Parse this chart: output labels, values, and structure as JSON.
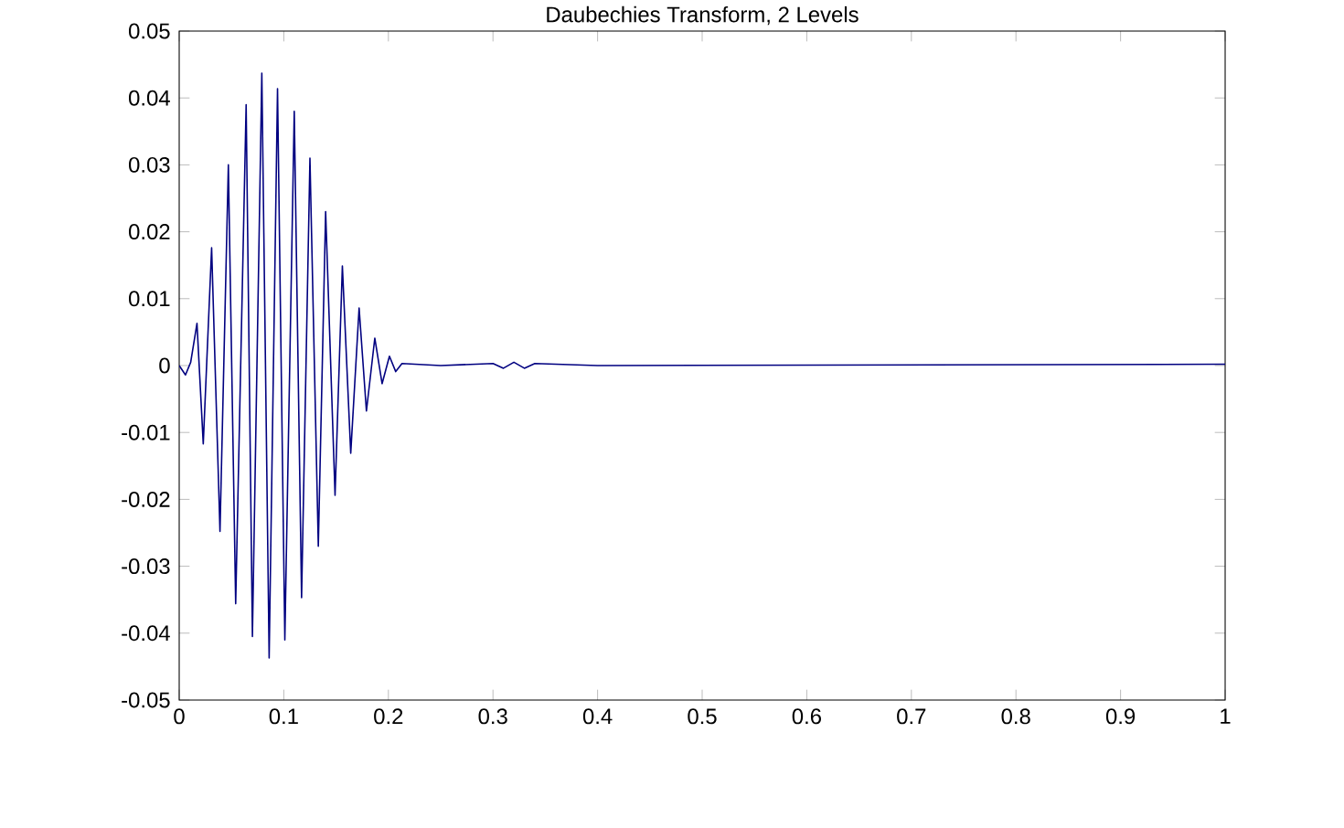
{
  "chart_data": {
    "type": "line",
    "title": "Daubechies Transform, 2 Levels",
    "x": [
      0,
      0.006,
      0.011,
      0.017,
      0.023,
      0.031,
      0.039,
      0.047,
      0.054,
      0.064,
      0.07,
      0.079,
      0.086,
      0.094,
      0.101,
      0.11,
      0.117,
      0.125,
      0.133,
      0.14,
      0.149,
      0.156,
      0.164,
      0.172,
      0.179,
      0.187,
      0.194,
      0.201,
      0.207,
      0.213,
      0.25,
      0.3,
      0.31,
      0.32,
      0.33,
      0.34,
      0.4,
      1.0
    ],
    "series": [
      {
        "color": "#000080",
        "values": [
          0,
          -0.0014,
          0.0005,
          0.0063,
          -0.0117,
          0.0176,
          -0.0248,
          0.03,
          -0.0356,
          0.039,
          -0.0405,
          0.0437,
          -0.0437,
          0.0414,
          -0.041,
          0.038,
          -0.0347,
          0.031,
          -0.027,
          0.023,
          -0.0194,
          0.0149,
          -0.0131,
          0.0086,
          -0.0068,
          0.0041,
          -0.0027,
          0.0014,
          -0.0009,
          0.0003,
          0,
          0.0003,
          -0.0004,
          0.0005,
          -0.0004,
          0.0003,
          0,
          0.0002
        ]
      }
    ],
    "xlim": [
      0,
      1
    ],
    "xticks": [
      0,
      0.1,
      0.2,
      0.3,
      0.4,
      0.5,
      0.6,
      0.7,
      0.8,
      0.9,
      1
    ],
    "ylim": [
      -0.05,
      0.05
    ],
    "yticks": [
      -0.05,
      -0.04,
      -0.03,
      -0.02,
      -0.01,
      0,
      0.01,
      0.02,
      0.03,
      0.04,
      0.05
    ],
    "grid": false,
    "marker": "none",
    "line_style": "solid"
  }
}
